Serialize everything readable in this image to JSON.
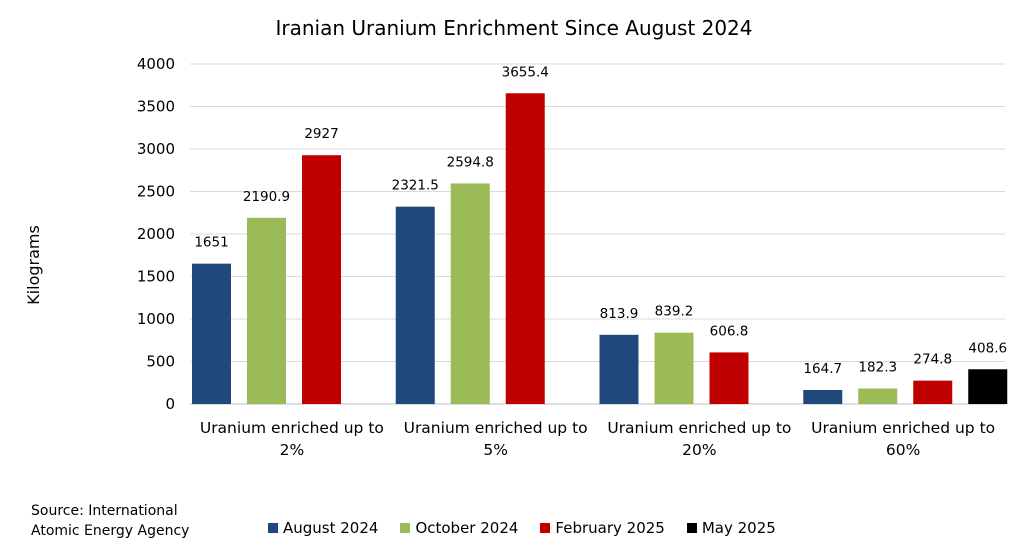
{
  "chart_data": {
    "type": "bar",
    "title": "Iranian Uranium Enrichment Since August 2024",
    "ylabel": "Kilograms",
    "xlabel": "",
    "ylim": [
      0,
      4000
    ],
    "yticks": [
      0,
      500,
      1000,
      1500,
      2000,
      2500,
      3000,
      3500,
      4000
    ],
    "grid": true,
    "legend_position": "bottom",
    "categories": [
      [
        "Uranium enriched up to",
        "2%"
      ],
      [
        "Uranium enriched up to",
        "5%"
      ],
      [
        "Uranium enriched up to",
        "20%"
      ],
      [
        "Uranium enriched up to",
        "60%"
      ]
    ],
    "series": [
      {
        "name": "August 2024",
        "color": "#1f497d",
        "values": [
          1651,
          2321.5,
          813.9,
          164.7
        ],
        "labels": [
          "1651",
          "2321.5",
          "813.9",
          "164.7"
        ]
      },
      {
        "name": "October 2024",
        "color": "#9bbb59",
        "values": [
          2190.9,
          2594.8,
          839.2,
          182.3
        ],
        "labels": [
          "2190.9",
          "2594.8",
          "839.2",
          "182.3"
        ]
      },
      {
        "name": "February 2025",
        "color": "#c00000",
        "values": [
          2927,
          3655.4,
          606.8,
          274.8
        ],
        "labels": [
          "2927",
          "3655.4",
          "606.8",
          "274.8"
        ]
      },
      {
        "name": "May 2025",
        "color": "#000000",
        "values": [
          null,
          null,
          null,
          408.6
        ],
        "labels": [
          null,
          null,
          null,
          "408.6"
        ]
      }
    ]
  },
  "source": {
    "line1": "Source: International",
    "line2": "Atomic Energy Agency"
  }
}
